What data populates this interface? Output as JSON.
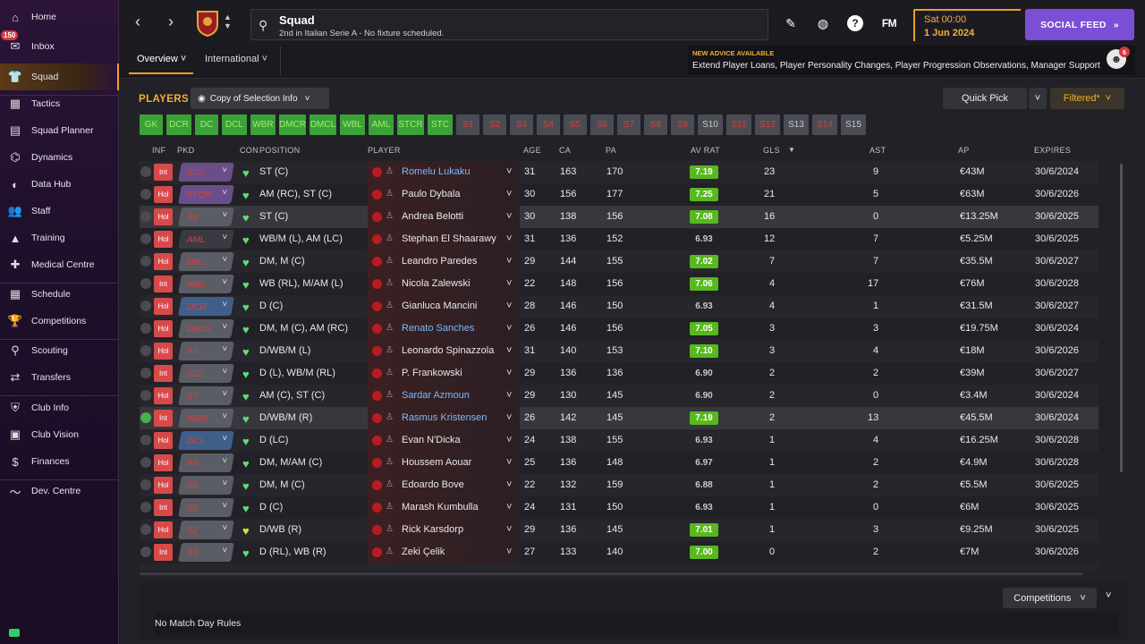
{
  "sidebar": {
    "inbox_badge": "150",
    "items": [
      {
        "label": "Home",
        "icon": "home-icon"
      },
      {
        "label": "Inbox",
        "icon": "inbox-icon"
      },
      {
        "label": "Squad",
        "icon": "squad-icon"
      },
      {
        "label": "Tactics",
        "icon": "tactics-icon"
      },
      {
        "label": "Squad Planner",
        "icon": "planner-icon"
      },
      {
        "label": "Dynamics",
        "icon": "dynamics-icon"
      },
      {
        "label": "Data Hub",
        "icon": "data-hub-icon"
      },
      {
        "label": "Staff",
        "icon": "staff-icon"
      },
      {
        "label": "Training",
        "icon": "training-icon"
      },
      {
        "label": "Medical Centre",
        "icon": "medical-icon"
      },
      {
        "label": "Schedule",
        "icon": "schedule-icon"
      },
      {
        "label": "Competitions",
        "icon": "trophy-icon"
      },
      {
        "label": "Scouting",
        "icon": "scouting-icon"
      },
      {
        "label": "Transfers",
        "icon": "transfers-icon"
      },
      {
        "label": "Club Info",
        "icon": "shield-icon"
      },
      {
        "label": "Club Vision",
        "icon": "vision-icon"
      },
      {
        "label": "Finances",
        "icon": "finances-icon"
      },
      {
        "label": "Dev. Centre",
        "icon": "dev-centre-icon"
      }
    ]
  },
  "header": {
    "title": "Squad",
    "subtitle": "2nd in Italian Serie A - No fixture scheduled.",
    "fm_label": "FM",
    "date_line1": "Sat 00:00",
    "date_line2": "1 Jun 2024",
    "social_feed": "SOCIAL FEED",
    "tabs": [
      "Overview",
      "International"
    ],
    "advice_title": "NEW ADVICE AVAILABLE",
    "advice_text": "Extend Player Loans, Player Personality Changes, Player Progression Observations, Manager Support",
    "advice_badge": "6"
  },
  "toolbar": {
    "players_title": "PLAYERS",
    "selection_info": "Copy of Selection Info",
    "quick_pick": "Quick Pick",
    "filtered": "Filtered*"
  },
  "positions": [
    {
      "label": "GK",
      "state": "g"
    },
    {
      "label": "DCR",
      "state": "g"
    },
    {
      "label": "DC",
      "state": "g"
    },
    {
      "label": "DCL",
      "state": "g"
    },
    {
      "label": "WBR",
      "state": "g"
    },
    {
      "label": "DMCR",
      "state": "g"
    },
    {
      "label": "DMCL",
      "state": "g"
    },
    {
      "label": "WBL",
      "state": "g"
    },
    {
      "label": "AML",
      "state": "g"
    },
    {
      "label": "STCR",
      "state": "g"
    },
    {
      "label": "STC",
      "state": "g"
    },
    {
      "label": "S1",
      "state": "r"
    },
    {
      "label": "S2",
      "state": "r"
    },
    {
      "label": "S3",
      "state": "r"
    },
    {
      "label": "S4",
      "state": "r"
    },
    {
      "label": "S5",
      "state": "r"
    },
    {
      "label": "S6",
      "state": "r"
    },
    {
      "label": "S7",
      "state": "r"
    },
    {
      "label": "S8",
      "state": "r"
    },
    {
      "label": "S9",
      "state": "r"
    },
    {
      "label": "S10",
      "state": "s"
    },
    {
      "label": "S11",
      "state": "r"
    },
    {
      "label": "S12",
      "state": "r"
    },
    {
      "label": "S13",
      "state": "s"
    },
    {
      "label": "S14",
      "state": "r"
    },
    {
      "label": "S15",
      "state": "s"
    }
  ],
  "table": {
    "columns": [
      "INF",
      "PKD",
      "CON",
      "POSITION",
      "PLAYER",
      "AGE",
      "CA",
      "PA",
      "AV RAT",
      "GLS",
      "AST",
      "AP",
      "EXPIRES"
    ],
    "rows": [
      {
        "inf": "Int",
        "pkd": "STC",
        "pkd_color": "#6a4e8a",
        "pos": "ST (C)",
        "name": "Romelu Lukaku",
        "link": true,
        "age": "31",
        "ca": "163",
        "pa": "170",
        "av": "7.19",
        "avg": true,
        "gls": "23",
        "ast": "9",
        "ap": "€43M",
        "exp": "30/6/2024",
        "heart": "g",
        "chk": false
      },
      {
        "inf": "Hol",
        "pkd": "STCR",
        "pkd_color": "#6a4e8a",
        "pos": "AM (RC), ST (C)",
        "name": "Paulo Dybala",
        "link": false,
        "age": "30",
        "ca": "156",
        "pa": "177",
        "av": "7.25",
        "avg": true,
        "gls": "21",
        "ast": "5",
        "ap": "€63M",
        "exp": "30/6/2026",
        "heart": "g",
        "chk": false
      },
      {
        "inf": "Hol",
        "pkd": "S4",
        "pkd_color": "#5a5d66",
        "pos": "ST (C)",
        "name": "Andrea Belotti",
        "link": false,
        "age": "30",
        "ca": "138",
        "pa": "156",
        "av": "7.08",
        "avg": true,
        "gls": "16",
        "ast": "0",
        "ap": "€13.25M",
        "exp": "30/6/2025",
        "heart": "g",
        "chk": false
      },
      {
        "inf": "Hol",
        "pkd": "AML",
        "pkd_color": "#3a3a42",
        "pos": "WB/M (L), AM (LC)",
        "name": "Stephan El Shaarawy",
        "link": false,
        "age": "31",
        "ca": "136",
        "pa": "152",
        "av": "6.93",
        "avg": false,
        "gls": "12",
        "ast": "7",
        "ap": "€5.25M",
        "exp": "30/6/2025",
        "heart": "g",
        "chk": false
      },
      {
        "inf": "Hol",
        "pkd": "DM...",
        "pkd_color": "#5a5d66",
        "pos": "DM, M (C)",
        "name": "Leandro Paredes",
        "link": false,
        "age": "29",
        "ca": "144",
        "pa": "155",
        "av": "7.02",
        "avg": true,
        "gls": "7",
        "ast": "7",
        "ap": "€35.5M",
        "exp": "30/6/2027",
        "heart": "g",
        "chk": false
      },
      {
        "inf": "Int",
        "pkd": "WBL",
        "pkd_color": "#5a5d66",
        "pos": "WB (RL), M/AM (L)",
        "name": "Nicola Zalewski",
        "link": false,
        "age": "22",
        "ca": "148",
        "pa": "156",
        "av": "7.06",
        "avg": true,
        "gls": "4",
        "ast": "17",
        "ap": "€76M",
        "exp": "30/6/2028",
        "heart": "g",
        "chk": false
      },
      {
        "inf": "Hol",
        "pkd": "DCR",
        "pkd_color": "#3f5f8a",
        "pos": "D (C)",
        "name": "Gianluca Mancini",
        "link": false,
        "age": "28",
        "ca": "146",
        "pa": "150",
        "av": "6.93",
        "avg": false,
        "gls": "4",
        "ast": "1",
        "ap": "€31.5M",
        "exp": "30/6/2027",
        "heart": "g",
        "chk": false
      },
      {
        "inf": "Hol",
        "pkd": "DMCL",
        "pkd_color": "#5a5d66",
        "pos": "DM, M (C), AM (RC)",
        "name": "Renato Sanches",
        "link": true,
        "age": "26",
        "ca": "146",
        "pa": "156",
        "av": "7.05",
        "avg": true,
        "gls": "3",
        "ast": "3",
        "ap": "€19.75M",
        "exp": "30/6/2024",
        "heart": "g",
        "chk": false
      },
      {
        "inf": "Hol",
        "pkd": "S1",
        "pkd_color": "#5a5d66",
        "pos": "D/WB/M (L)",
        "name": "Leonardo Spinazzola",
        "link": false,
        "age": "31",
        "ca": "140",
        "pa": "153",
        "av": "7.10",
        "avg": true,
        "gls": "3",
        "ast": "4",
        "ap": "€18M",
        "exp": "30/6/2026",
        "heart": "g",
        "chk": false
      },
      {
        "inf": "Int",
        "pkd": "S12",
        "pkd_color": "#5a5d66",
        "pos": "D (L), WB/M (RL)",
        "name": "P. Frankowski",
        "link": false,
        "age": "29",
        "ca": "136",
        "pa": "136",
        "av": "6.90",
        "avg": false,
        "gls": "2",
        "ast": "2",
        "ap": "€39M",
        "exp": "30/6/2027",
        "heart": "g",
        "chk": false
      },
      {
        "inf": "Hol",
        "pkd": "S7",
        "pkd_color": "#5a5d66",
        "pos": "AM (C), ST (C)",
        "name": "Sardar Azmoun",
        "link": true,
        "age": "29",
        "ca": "130",
        "pa": "145",
        "av": "6.90",
        "avg": false,
        "gls": "2",
        "ast": "0",
        "ap": "€3.4M",
        "exp": "30/6/2024",
        "heart": "g",
        "chk": false
      },
      {
        "inf": "Int",
        "pkd": "WBR",
        "pkd_color": "#5a5d66",
        "pos": "D/WB/M (R)",
        "name": "Rasmus Kristensen",
        "link": true,
        "age": "26",
        "ca": "142",
        "pa": "145",
        "av": "7.19",
        "avg": true,
        "gls": "2",
        "ast": "13",
        "ap": "€45.5M",
        "exp": "30/6/2024",
        "heart": "g",
        "chk": true
      },
      {
        "inf": "Hol",
        "pkd": "DCL",
        "pkd_color": "#3f5f8a",
        "pos": "D (LC)",
        "name": "Evan N'Dicka",
        "link": false,
        "age": "24",
        "ca": "138",
        "pa": "155",
        "av": "6.93",
        "avg": false,
        "gls": "1",
        "ast": "4",
        "ap": "€16.25M",
        "exp": "30/6/2028",
        "heart": "g",
        "chk": false
      },
      {
        "inf": "Hol",
        "pkd": "S6",
        "pkd_color": "#5a5d66",
        "pos": "DM, M/AM (C)",
        "name": "Houssem Aouar",
        "link": false,
        "age": "25",
        "ca": "136",
        "pa": "148",
        "av": "6.97",
        "avg": false,
        "gls": "1",
        "ast": "2",
        "ap": "€4.9M",
        "exp": "30/6/2028",
        "heart": "g",
        "chk": false
      },
      {
        "inf": "Hol",
        "pkd": "S5",
        "pkd_color": "#5a5d66",
        "pos": "DM, M (C)",
        "name": "Edoardo Bove",
        "link": false,
        "age": "22",
        "ca": "132",
        "pa": "159",
        "av": "6.88",
        "avg": false,
        "gls": "1",
        "ast": "2",
        "ap": "€5.5M",
        "exp": "30/6/2025",
        "heart": "g",
        "chk": false
      },
      {
        "inf": "Int",
        "pkd": "S8",
        "pkd_color": "#5a5d66",
        "pos": "D (C)",
        "name": "Marash Kumbulla",
        "link": false,
        "age": "24",
        "ca": "131",
        "pa": "150",
        "av": "6.93",
        "avg": false,
        "gls": "1",
        "ast": "0",
        "ap": "€6M",
        "exp": "30/6/2025",
        "heart": "g",
        "chk": false
      },
      {
        "inf": "Hol",
        "pkd": "S2",
        "pkd_color": "#5a5d66",
        "pos": "D/WB (R)",
        "name": "Rick Karsdorp",
        "link": false,
        "age": "29",
        "ca": "136",
        "pa": "145",
        "av": "7.01",
        "avg": true,
        "gls": "1",
        "ast": "3",
        "ap": "€9.25M",
        "exp": "30/6/2025",
        "heart": "y",
        "chk": false
      },
      {
        "inf": "Int",
        "pkd": "S3",
        "pkd_color": "#5a5d66",
        "pos": "D (RL), WB (R)",
        "name": "Zeki Çelik",
        "link": false,
        "age": "27",
        "ca": "133",
        "pa": "140",
        "av": "7.00",
        "avg": true,
        "gls": "0",
        "ast": "2",
        "ap": "€7M",
        "exp": "30/6/2026",
        "heart": "g",
        "chk": false
      }
    ]
  },
  "bottom": {
    "competitions": "Competitions",
    "no_rules": "No Match Day Rules"
  },
  "colors": {
    "accent": "#f0a020",
    "social": "#7b4ed6",
    "rating_good": "#58b820",
    "link": "#7eb8ff"
  }
}
